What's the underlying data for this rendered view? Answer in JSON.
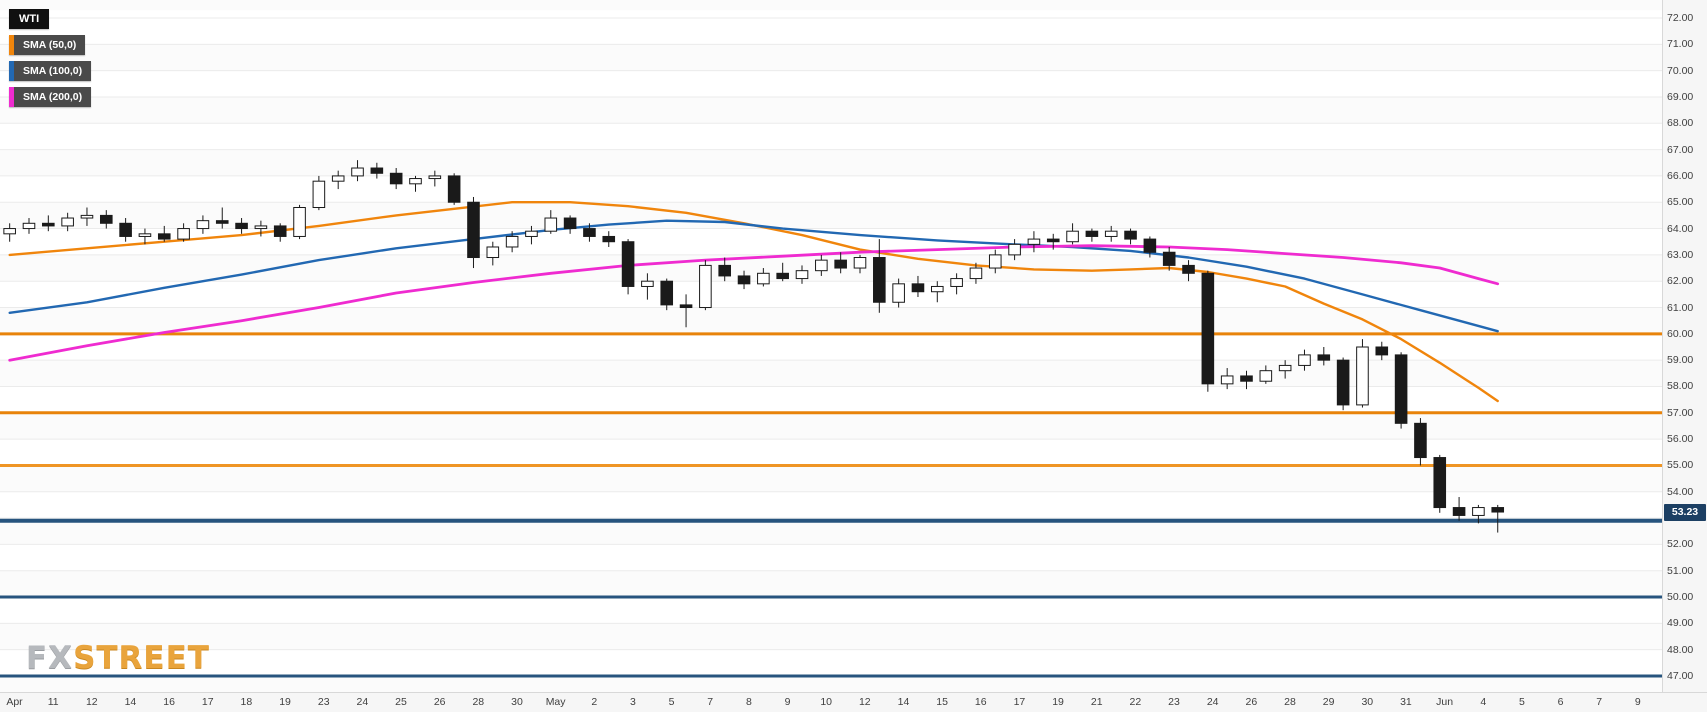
{
  "legend": {
    "symbol": "WTI",
    "indicators": [
      {
        "label": "SMA (50,0)",
        "color": "#f0850c"
      },
      {
        "label": "SMA (100,0)",
        "color": "#2268b2"
      },
      {
        "label": "SMA (200,0)",
        "color": "#ef2bd0"
      }
    ]
  },
  "watermark": {
    "fx": "FX",
    "street": "STREET"
  },
  "price_badge": {
    "text": "53.23",
    "bg": "#1c3f63"
  },
  "chart_data": {
    "type": "candlestick",
    "symbol": "WTI",
    "title": "WTI with SMA(50), SMA(100), SMA(200)",
    "y_min": 47,
    "y_max": 72,
    "grid": true,
    "legend_position": "top-left",
    "last_price": 53.23,
    "y_ticks": [
      "72.00",
      "71.00",
      "70.00",
      "69.00",
      "68.00",
      "67.00",
      "66.00",
      "65.00",
      "64.00",
      "63.00",
      "62.00",
      "61.00",
      "60.00",
      "59.00",
      "58.00",
      "57.00",
      "56.00",
      "55.00",
      "54.00",
      "52.00",
      "51.00",
      "50.00",
      "49.00",
      "48.00",
      "47.00"
    ],
    "x_labels": [
      "Apr",
      "11",
      "12",
      "14",
      "16",
      "17",
      "18",
      "19",
      "23",
      "24",
      "25",
      "26",
      "28",
      "30",
      "May",
      "2",
      "3",
      "5",
      "7",
      "8",
      "9",
      "10",
      "12",
      "14",
      "15",
      "16",
      "17",
      "19",
      "21",
      "22",
      "23",
      "24",
      "26",
      "28",
      "29",
      "30",
      "31",
      "Jun",
      "4",
      "5",
      "6",
      "7",
      "9"
    ],
    "levels": [
      {
        "price": 60.0,
        "color": "#e8830a",
        "width": 3
      },
      {
        "price": 57.0,
        "color": "#e8830a",
        "width": 3
      },
      {
        "price": 55.0,
        "color": "#ef9524",
        "width": 3
      },
      {
        "price": 52.9,
        "color": "#27547e",
        "width": 4
      },
      {
        "price": 50.0,
        "color": "#27547e",
        "width": 3
      },
      {
        "price": 47.0,
        "color": "#27547e",
        "width": 3
      }
    ],
    "sma_series": [
      {
        "name": "SMA (50,0)",
        "color": "#f0850c",
        "points": [
          [
            0,
            63.0
          ],
          [
            4,
            63.25
          ],
          [
            8,
            63.5
          ],
          [
            12,
            63.75
          ],
          [
            16,
            64.1
          ],
          [
            20,
            64.5
          ],
          [
            23,
            64.75
          ],
          [
            26,
            65.0
          ],
          [
            29,
            65.0
          ],
          [
            32,
            64.85
          ],
          [
            35,
            64.6
          ],
          [
            38,
            64.2
          ],
          [
            41,
            63.75
          ],
          [
            44,
            63.2
          ],
          [
            47,
            62.85
          ],
          [
            50,
            62.6
          ],
          [
            53,
            62.45
          ],
          [
            56,
            62.4
          ],
          [
            58,
            62.45
          ],
          [
            60,
            62.5
          ],
          [
            62,
            62.35
          ],
          [
            64,
            62.1
          ],
          [
            66,
            61.8
          ],
          [
            68,
            61.15
          ],
          [
            70,
            60.55
          ],
          [
            72,
            59.8
          ],
          [
            74,
            58.9
          ],
          [
            76,
            57.95
          ],
          [
            77,
            57.45
          ]
        ]
      },
      {
        "name": "SMA (100,0)",
        "color": "#2268b2",
        "points": [
          [
            0,
            60.8
          ],
          [
            4,
            61.2
          ],
          [
            8,
            61.75
          ],
          [
            12,
            62.25
          ],
          [
            16,
            62.8
          ],
          [
            20,
            63.25
          ],
          [
            24,
            63.6
          ],
          [
            28,
            63.95
          ],
          [
            31,
            64.15
          ],
          [
            34,
            64.3
          ],
          [
            37,
            64.25
          ],
          [
            40,
            64.0
          ],
          [
            44,
            63.75
          ],
          [
            48,
            63.55
          ],
          [
            52,
            63.4
          ],
          [
            55,
            63.3
          ],
          [
            58,
            63.15
          ],
          [
            61,
            62.9
          ],
          [
            64,
            62.55
          ],
          [
            67,
            62.1
          ],
          [
            70,
            61.5
          ],
          [
            73,
            60.9
          ],
          [
            75,
            60.5
          ],
          [
            77,
            60.1
          ]
        ]
      },
      {
        "name": "SMA (200,0)",
        "color": "#ef2bd0",
        "points": [
          [
            0,
            59.0
          ],
          [
            4,
            59.55
          ],
          [
            8,
            60.05
          ],
          [
            12,
            60.5
          ],
          [
            16,
            61.0
          ],
          [
            20,
            61.55
          ],
          [
            24,
            61.95
          ],
          [
            28,
            62.3
          ],
          [
            32,
            62.6
          ],
          [
            36,
            62.8
          ],
          [
            40,
            62.95
          ],
          [
            44,
            63.1
          ],
          [
            48,
            63.2
          ],
          [
            52,
            63.3
          ],
          [
            56,
            63.35
          ],
          [
            60,
            63.3
          ],
          [
            63,
            63.2
          ],
          [
            66,
            63.05
          ],
          [
            69,
            62.9
          ],
          [
            72,
            62.7
          ],
          [
            74,
            62.5
          ],
          [
            76,
            62.1
          ],
          [
            77,
            61.9
          ]
        ]
      }
    ],
    "candles": [
      [
        63.8,
        64.2,
        63.5,
        64.0
      ],
      [
        64.0,
        64.4,
        63.8,
        64.2
      ],
      [
        64.2,
        64.5,
        63.9,
        64.1
      ],
      [
        64.1,
        64.6,
        63.9,
        64.4
      ],
      [
        64.4,
        64.8,
        64.1,
        64.5
      ],
      [
        64.5,
        64.7,
        64.0,
        64.2
      ],
      [
        64.2,
        64.4,
        63.5,
        63.7
      ],
      [
        63.7,
        64.0,
        63.4,
        63.8
      ],
      [
        63.8,
        64.1,
        63.5,
        63.6
      ],
      [
        63.6,
        64.2,
        63.5,
        64.0
      ],
      [
        64.0,
        64.5,
        63.8,
        64.3
      ],
      [
        64.3,
        64.8,
        64.0,
        64.2
      ],
      [
        64.2,
        64.4,
        63.8,
        64.0
      ],
      [
        64.0,
        64.3,
        63.7,
        64.1
      ],
      [
        64.1,
        64.2,
        63.5,
        63.7
      ],
      [
        63.7,
        64.9,
        63.6,
        64.8
      ],
      [
        64.8,
        66.0,
        64.7,
        65.8
      ],
      [
        65.8,
        66.2,
        65.5,
        66.0
      ],
      [
        66.0,
        66.6,
        65.8,
        66.3
      ],
      [
        66.3,
        66.5,
        65.9,
        66.1
      ],
      [
        66.1,
        66.3,
        65.5,
        65.7
      ],
      [
        65.7,
        66.0,
        65.4,
        65.9
      ],
      [
        65.9,
        66.2,
        65.6,
        66.0
      ],
      [
        66.0,
        66.1,
        64.9,
        65.0
      ],
      [
        65.0,
        65.2,
        62.5,
        62.9
      ],
      [
        62.9,
        63.5,
        62.6,
        63.3
      ],
      [
        63.3,
        63.9,
        63.1,
        63.7
      ],
      [
        63.7,
        64.1,
        63.4,
        63.9
      ],
      [
        63.9,
        64.7,
        63.8,
        64.4
      ],
      [
        64.4,
        64.5,
        63.8,
        64.0
      ],
      [
        64.0,
        64.2,
        63.5,
        63.7
      ],
      [
        63.7,
        63.9,
        63.3,
        63.5
      ],
      [
        63.5,
        63.6,
        61.5,
        61.8
      ],
      [
        61.8,
        62.3,
        61.3,
        62.0
      ],
      [
        62.0,
        62.1,
        60.9,
        61.1
      ],
      [
        61.1,
        61.5,
        60.25,
        61.0
      ],
      [
        61.0,
        62.8,
        60.9,
        62.6
      ],
      [
        62.6,
        62.9,
        62.0,
        62.2
      ],
      [
        62.2,
        62.4,
        61.7,
        61.9
      ],
      [
        61.9,
        62.5,
        61.8,
        62.3
      ],
      [
        62.3,
        62.7,
        62.0,
        62.1
      ],
      [
        62.1,
        62.6,
        61.9,
        62.4
      ],
      [
        62.4,
        63.0,
        62.2,
        62.8
      ],
      [
        62.8,
        63.1,
        62.3,
        62.5
      ],
      [
        62.5,
        63.0,
        62.3,
        62.9
      ],
      [
        62.9,
        63.6,
        60.8,
        61.2
      ],
      [
        61.2,
        62.1,
        61.0,
        61.9
      ],
      [
        61.9,
        62.2,
        61.4,
        61.6
      ],
      [
        61.6,
        62.0,
        61.2,
        61.8
      ],
      [
        61.8,
        62.3,
        61.5,
        62.1
      ],
      [
        62.1,
        62.7,
        61.9,
        62.5
      ],
      [
        62.5,
        63.2,
        62.3,
        63.0
      ],
      [
        63.0,
        63.6,
        62.8,
        63.4
      ],
      [
        63.4,
        63.9,
        63.1,
        63.6
      ],
      [
        63.6,
        63.8,
        63.2,
        63.5
      ],
      [
        63.5,
        64.2,
        63.4,
        63.9
      ],
      [
        63.9,
        64.0,
        63.5,
        63.7
      ],
      [
        63.7,
        64.1,
        63.5,
        63.9
      ],
      [
        63.9,
        64.0,
        63.4,
        63.6
      ],
      [
        63.6,
        63.7,
        62.9,
        63.1
      ],
      [
        63.1,
        63.3,
        62.4,
        62.6
      ],
      [
        62.6,
        62.8,
        62.0,
        62.3
      ],
      [
        62.3,
        62.4,
        57.8,
        58.1
      ],
      [
        58.1,
        58.7,
        57.9,
        58.4
      ],
      [
        58.4,
        58.6,
        57.9,
        58.2
      ],
      [
        58.2,
        58.8,
        58.1,
        58.6
      ],
      [
        58.6,
        59.0,
        58.3,
        58.8
      ],
      [
        58.8,
        59.4,
        58.6,
        59.2
      ],
      [
        59.2,
        59.5,
        58.8,
        59.0
      ],
      [
        59.0,
        59.1,
        57.1,
        57.3
      ],
      [
        57.3,
        59.8,
        57.2,
        59.5
      ],
      [
        59.5,
        59.7,
        59.0,
        59.2
      ],
      [
        59.2,
        59.3,
        56.4,
        56.6
      ],
      [
        56.6,
        56.8,
        55.0,
        55.3
      ],
      [
        55.3,
        55.4,
        53.2,
        53.4
      ],
      [
        53.4,
        53.8,
        52.9,
        53.1
      ],
      [
        53.1,
        53.5,
        52.8,
        53.4
      ],
      [
        53.4,
        53.5,
        52.45,
        53.23
      ]
    ],
    "colors": {
      "bull": "#ffffff",
      "bear": "#1a1a1a",
      "outline": "#1a1a1a",
      "grid": "#ebebeb",
      "axis_text": "#3f3f3f",
      "panel_bg": "#f6f6f6"
    }
  }
}
